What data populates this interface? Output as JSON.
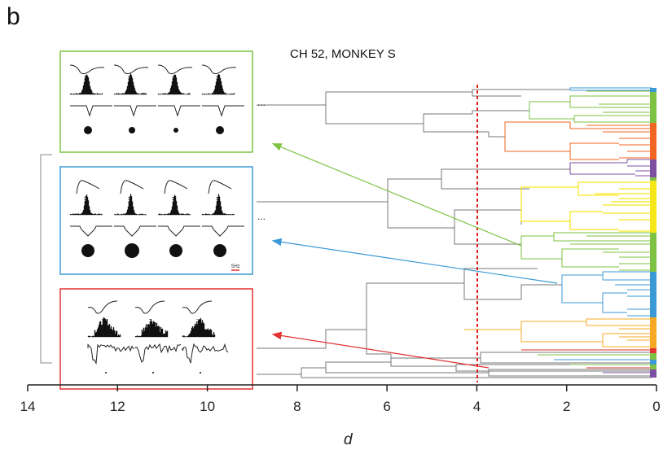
{
  "panel_letter": "b",
  "title": "CH 52, MONKEY S",
  "x_axis": {
    "label": "d",
    "ticks": [
      "14",
      "12",
      "10",
      "8",
      "6",
      "4",
      "2",
      "0"
    ],
    "range": [
      14,
      0
    ]
  },
  "threshold": {
    "value": 4,
    "color": "#e02020"
  },
  "scale_bar_label": "5Hz",
  "ellipsis": "...",
  "colors": {
    "green": "#7dc242",
    "blue": "#3b9ad6",
    "red": "#e23232",
    "orange": "#f26522",
    "purple": "#7c4fa0",
    "yellow": "#f5e61a",
    "gold": "#f7a823",
    "gray": "#888888"
  },
  "panels": [
    {
      "name": "green-cluster",
      "color": "#7dc242",
      "dot_sizes": [
        5,
        4,
        3,
        5
      ]
    },
    {
      "name": "blue-cluster",
      "color": "#3b9ad6",
      "dot_sizes": [
        8,
        9,
        8,
        8
      ]
    },
    {
      "name": "red-cluster",
      "color": "#e23232",
      "dot_sizes": [
        1,
        1,
        1
      ]
    }
  ]
}
